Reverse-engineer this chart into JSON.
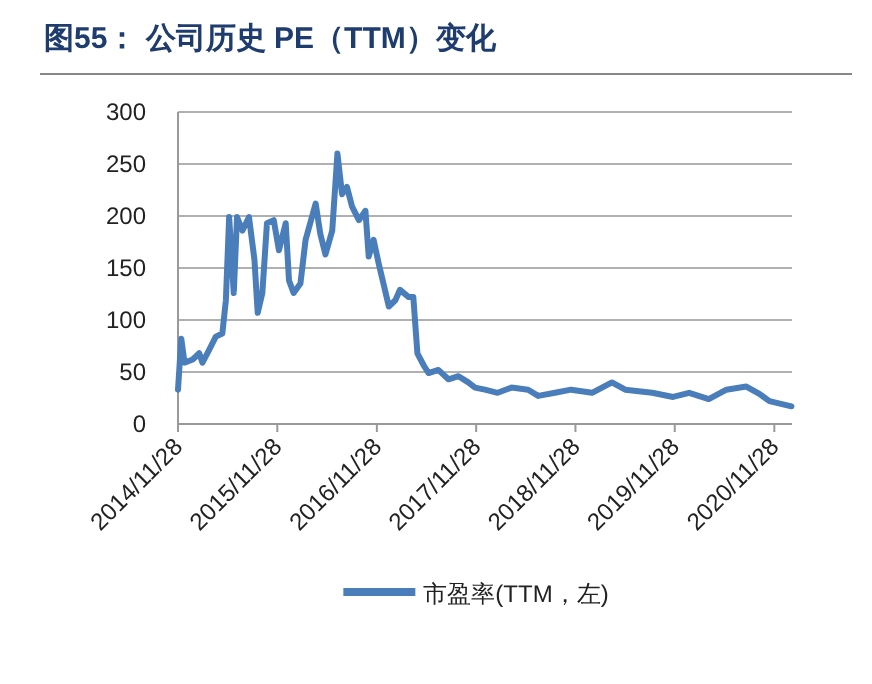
{
  "chart_data": {
    "type": "line",
    "title": "图55：  公司历史 PE（TTM）变化",
    "x": [
      "2014-11-28",
      "2014-12-10",
      "2014-12-22",
      "2015-01-21",
      "2015-02-14",
      "2015-02-26",
      "2015-03-22",
      "2015-04-16",
      "2015-05-10",
      "2015-05-23",
      "2015-06-04",
      "2015-06-21",
      "2015-07-03",
      "2015-07-23",
      "2015-08-16",
      "2015-09-05",
      "2015-09-17",
      "2015-10-04",
      "2015-10-21",
      "2015-11-15",
      "2015-12-04",
      "2015-12-29",
      "2016-01-10",
      "2016-01-27",
      "2016-02-21",
      "2016-03-11",
      "2016-04-17",
      "2016-05-04",
      "2016-05-23",
      "2016-06-17",
      "2016-07-06",
      "2016-07-23",
      "2016-08-10",
      "2016-08-29",
      "2016-09-23",
      "2016-10-17",
      "2016-10-29",
      "2016-11-16",
      "2016-12-05",
      "2016-12-25",
      "2017-01-11",
      "2017-02-04",
      "2017-02-21",
      "2017-03-25",
      "2017-04-11",
      "2017-04-26",
      "2017-05-20",
      "2017-06-06",
      "2017-07-12",
      "2017-08-18",
      "2017-09-24",
      "2017-10-30",
      "2017-11-24",
      "2017-12-30",
      "2018-02-15",
      "2018-04-07",
      "2018-06-07",
      "2018-07-14",
      "2018-09-14",
      "2018-11-12",
      "2019-01-28",
      "2019-04-11",
      "2019-05-30",
      "2019-09-06",
      "2019-11-22",
      "2020-01-20",
      "2020-04-01",
      "2020-06-05",
      "2020-08-17",
      "2020-10-04",
      "2020-11-10",
      "2021-01-30"
    ],
    "series": [
      {
        "name": "市盈率(TTM，左)",
        "color": "#4a7ebb",
        "values": [
          33,
          82,
          59,
          62,
          68,
          59,
          71,
          84,
          87,
          119,
          199,
          126,
          199,
          186,
          199,
          158,
          107,
          126,
          193,
          196,
          167,
          193,
          138,
          126,
          135,
          177,
          212,
          183,
          163,
          186,
          260,
          221,
          228,
          209,
          196,
          205,
          161,
          177,
          154,
          132,
          113,
          119,
          129,
          122,
          122,
          68,
          56,
          49,
          52,
          43,
          46,
          40,
          35,
          33,
          30,
          35,
          33,
          27,
          30,
          33,
          30,
          40,
          33,
          30,
          26,
          30,
          24,
          33,
          36,
          29,
          22,
          17
        ]
      }
    ],
    "xlim": [
      "2014-11-28",
      "2021-02-01"
    ],
    "xticks": [
      {
        "value": "2014-11-28",
        "label": "2014/11/28"
      },
      {
        "value": "2015-11-28",
        "label": "2015/11/28"
      },
      {
        "value": "2016-11-28",
        "label": "2016/11/28"
      },
      {
        "value": "2017-11-28",
        "label": "2017/11/28"
      },
      {
        "value": "2018-11-28",
        "label": "2018/11/28"
      },
      {
        "value": "2019-11-28",
        "label": "2019/11/28"
      },
      {
        "value": "2020-11-28",
        "label": "2020/11/28"
      }
    ],
    "ylim": [
      0,
      300
    ],
    "yticks": [
      0,
      50,
      100,
      150,
      200,
      250,
      300
    ],
    "grid": "y",
    "legend": "bottom",
    "marker": "none",
    "line_style": "solid"
  }
}
